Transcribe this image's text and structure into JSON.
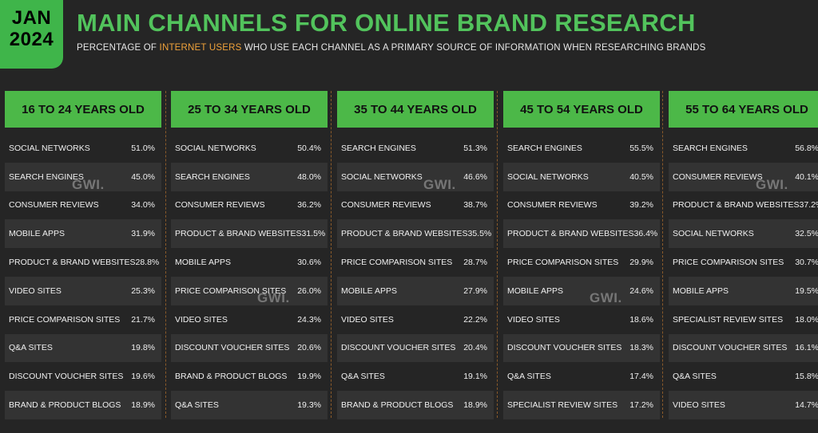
{
  "badge": {
    "month": "JAN",
    "year": "2024"
  },
  "title": "MAIN CHANNELS FOR ONLINE BRAND RESEARCH",
  "subtitle": {
    "before": "PERCENTAGE OF ",
    "highlight": "INTERNET USERS",
    "after": " WHO USE EACH CHANNEL AS A PRIMARY SOURCE OF INFORMATION WHEN RESEARCHING BRANDS"
  },
  "watermark": "GWI.",
  "colors": {
    "accent": "#4cb848",
    "title": "#52c35c",
    "highlight": "#f0a23a",
    "background": "#252525"
  },
  "chart_data": {
    "type": "table",
    "title": "MAIN CHANNELS FOR ONLINE BRAND RESEARCH",
    "groups": [
      {
        "name": "16 TO 24 YEARS OLD",
        "rows": [
          {
            "label": "SOCIAL NETWORKS",
            "value": "51.0%"
          },
          {
            "label": "SEARCH ENGINES",
            "value": "45.0%"
          },
          {
            "label": "CONSUMER REVIEWS",
            "value": "34.0%"
          },
          {
            "label": "MOBILE APPS",
            "value": "31.9%"
          },
          {
            "label": "PRODUCT & BRAND WEBSITES",
            "value": "28.8%"
          },
          {
            "label": "VIDEO SITES",
            "value": "25.3%"
          },
          {
            "label": "PRICE COMPARISON SITES",
            "value": "21.7%"
          },
          {
            "label": "Q&A SITES",
            "value": "19.8%"
          },
          {
            "label": "DISCOUNT VOUCHER SITES",
            "value": "19.6%"
          },
          {
            "label": "BRAND & PRODUCT BLOGS",
            "value": "18.9%"
          }
        ]
      },
      {
        "name": "25 TO 34 YEARS OLD",
        "rows": [
          {
            "label": "SOCIAL NETWORKS",
            "value": "50.4%"
          },
          {
            "label": "SEARCH ENGINES",
            "value": "48.0%"
          },
          {
            "label": "CONSUMER REVIEWS",
            "value": "36.2%"
          },
          {
            "label": "PRODUCT & BRAND WEBSITES",
            "value": "31.5%"
          },
          {
            "label": "MOBILE APPS",
            "value": "30.6%"
          },
          {
            "label": "PRICE COMPARISON SITES",
            "value": "26.0%"
          },
          {
            "label": "VIDEO SITES",
            "value": "24.3%"
          },
          {
            "label": "DISCOUNT VOUCHER SITES",
            "value": "20.6%"
          },
          {
            "label": "BRAND & PRODUCT BLOGS",
            "value": "19.9%"
          },
          {
            "label": "Q&A SITES",
            "value": "19.3%"
          }
        ]
      },
      {
        "name": "35 TO 44 YEARS OLD",
        "rows": [
          {
            "label": "SEARCH ENGINES",
            "value": "51.3%"
          },
          {
            "label": "SOCIAL NETWORKS",
            "value": "46.6%"
          },
          {
            "label": "CONSUMER REVIEWS",
            "value": "38.7%"
          },
          {
            "label": "PRODUCT & BRAND WEBSITES",
            "value": "35.5%"
          },
          {
            "label": "PRICE COMPARISON SITES",
            "value": "28.7%"
          },
          {
            "label": "MOBILE APPS",
            "value": "27.9%"
          },
          {
            "label": "VIDEO SITES",
            "value": "22.2%"
          },
          {
            "label": "DISCOUNT VOUCHER SITES",
            "value": "20.4%"
          },
          {
            "label": "Q&A SITES",
            "value": "19.1%"
          },
          {
            "label": "BRAND & PRODUCT BLOGS",
            "value": "18.9%"
          }
        ]
      },
      {
        "name": "45 TO 54 YEARS OLD",
        "rows": [
          {
            "label": "SEARCH ENGINES",
            "value": "55.5%"
          },
          {
            "label": "SOCIAL NETWORKS",
            "value": "40.5%"
          },
          {
            "label": "CONSUMER REVIEWS",
            "value": "39.2%"
          },
          {
            "label": "PRODUCT & BRAND WEBSITES",
            "value": "36.4%"
          },
          {
            "label": "PRICE COMPARISON SITES",
            "value": "29.9%"
          },
          {
            "label": "MOBILE APPS",
            "value": "24.6%"
          },
          {
            "label": "VIDEO SITES",
            "value": "18.6%"
          },
          {
            "label": "DISCOUNT VOUCHER SITES",
            "value": "18.3%"
          },
          {
            "label": "Q&A SITES",
            "value": "17.4%"
          },
          {
            "label": "SPECIALIST REVIEW SITES",
            "value": "17.2%"
          }
        ]
      },
      {
        "name": "55 TO 64 YEARS OLD",
        "rows": [
          {
            "label": "SEARCH ENGINES",
            "value": "56.8%"
          },
          {
            "label": "CONSUMER REVIEWS",
            "value": "40.1%"
          },
          {
            "label": "PRODUCT & BRAND WEBSITES",
            "value": "37.2%"
          },
          {
            "label": "SOCIAL NETWORKS",
            "value": "32.5%"
          },
          {
            "label": "PRICE COMPARISON SITES",
            "value": "30.7%"
          },
          {
            "label": "MOBILE APPS",
            "value": "19.5%"
          },
          {
            "label": "SPECIALIST REVIEW SITES",
            "value": "18.0%"
          },
          {
            "label": "DISCOUNT VOUCHER SITES",
            "value": "16.1%"
          },
          {
            "label": "Q&A SITES",
            "value": "15.8%"
          },
          {
            "label": "VIDEO SITES",
            "value": "14.7%"
          }
        ]
      }
    ]
  }
}
